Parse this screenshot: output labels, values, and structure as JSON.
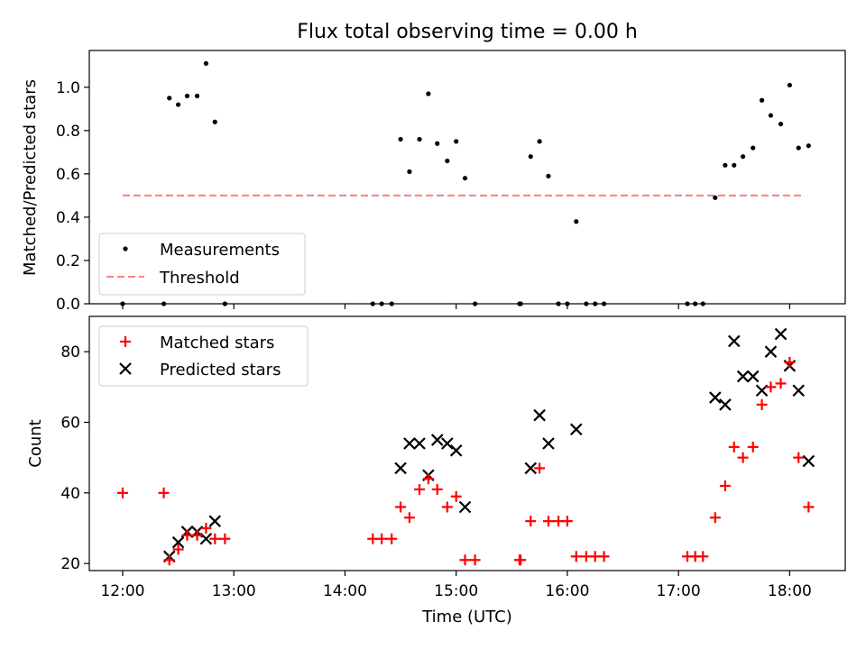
{
  "title": "Flux total observing time = 0.00 h",
  "chart_data": [
    {
      "type": "scatter",
      "ylabel": "Matched/Predicted stars",
      "xlim": [
        11.7,
        18.5
      ],
      "ylim": [
        0,
        1.17
      ],
      "yticks": [
        0.0,
        0.2,
        0.4,
        0.6,
        0.8,
        1.0
      ],
      "ytick_labels": [
        "0.0",
        "0.2",
        "0.4",
        "0.6",
        "0.8",
        "1.0"
      ],
      "legend_position": "lower-left",
      "colors": {
        "measurements": "#000000",
        "threshold": "#ff7f7f"
      },
      "series": [
        {
          "name": "Measurements",
          "kind": "points",
          "x": [
            12.0,
            12.37,
            12.42,
            12.5,
            12.58,
            12.67,
            12.75,
            12.83,
            12.92,
            14.25,
            14.33,
            14.42,
            14.5,
            14.58,
            14.67,
            14.75,
            14.83,
            14.92,
            15.0,
            15.08,
            15.17,
            15.57,
            15.58,
            15.67,
            15.75,
            15.83,
            15.92,
            16.0,
            16.08,
            16.17,
            16.25,
            16.33,
            17.08,
            17.15,
            17.22,
            17.33,
            17.42,
            17.5,
            17.58,
            17.67,
            17.75,
            17.83,
            17.92,
            18.0,
            18.08,
            18.17
          ],
          "y": [
            0.0,
            0.0,
            0.95,
            0.92,
            0.96,
            0.96,
            1.11,
            0.84,
            0.0,
            0.0,
            0.0,
            0.0,
            0.76,
            0.61,
            0.76,
            0.97,
            0.74,
            0.66,
            0.75,
            0.58,
            0.0,
            0.0,
            0.0,
            0.68,
            0.75,
            0.59,
            0.0,
            0.0,
            0.38,
            0.0,
            0.0,
            0.0,
            0.0,
            0.0,
            0.0,
            0.49,
            0.64,
            0.64,
            0.68,
            0.72,
            0.94,
            0.87,
            0.83,
            1.01,
            0.72,
            0.73
          ]
        },
        {
          "name": "Threshold",
          "kind": "dashed-line",
          "x": [
            12.0,
            18.12
          ],
          "y": [
            0.5,
            0.5
          ]
        }
      ]
    },
    {
      "type": "scatter",
      "xlabel": "Time (UTC)",
      "ylabel": "Count",
      "xlim": [
        11.7,
        18.5
      ],
      "ylim": [
        18,
        90
      ],
      "xticks": [
        12,
        13,
        14,
        15,
        16,
        17,
        18
      ],
      "xtick_labels": [
        "12:00",
        "13:00",
        "14:00",
        "15:00",
        "16:00",
        "17:00",
        "18:00"
      ],
      "yticks": [
        20,
        40,
        60,
        80
      ],
      "ytick_labels": [
        "20",
        "40",
        "60",
        "80"
      ],
      "legend_position": "upper-left",
      "colors": {
        "matched": "#ff0000",
        "predicted": "#000000"
      },
      "series": [
        {
          "name": "Matched stars",
          "marker": "plus",
          "x": [
            12.0,
            12.37,
            12.42,
            12.5,
            12.58,
            12.67,
            12.75,
            12.83,
            12.92,
            14.25,
            14.33,
            14.42,
            14.5,
            14.58,
            14.67,
            14.75,
            14.83,
            14.92,
            15.0,
            15.08,
            15.17,
            15.57,
            15.58,
            15.67,
            15.75,
            15.83,
            15.92,
            16.0,
            16.08,
            16.17,
            16.25,
            16.33,
            17.08,
            17.15,
            17.22,
            17.33,
            17.42,
            17.5,
            17.58,
            17.67,
            17.75,
            17.83,
            17.92,
            18.0,
            18.08,
            18.17
          ],
          "y": [
            40,
            40,
            21,
            24,
            28,
            28,
            30,
            27,
            27,
            27,
            27,
            27,
            36,
            33,
            41,
            44,
            41,
            36,
            39,
            21,
            21,
            21,
            21,
            32,
            47,
            32,
            32,
            32,
            22,
            22,
            22,
            22,
            22,
            22,
            22,
            33,
            42,
            53,
            50,
            53,
            65,
            70,
            71,
            77,
            50,
            36
          ]
        },
        {
          "name": "Predicted stars",
          "marker": "x",
          "x": [
            12.42,
            12.5,
            12.58,
            12.67,
            12.75,
            12.83,
            14.5,
            14.58,
            14.67,
            14.75,
            14.83,
            14.92,
            15.0,
            15.08,
            15.67,
            15.75,
            15.83,
            16.08,
            17.33,
            17.42,
            17.5,
            17.58,
            17.67,
            17.75,
            17.83,
            17.92,
            18.0,
            18.08,
            18.17
          ],
          "y": [
            22,
            26,
            29,
            29,
            27,
            32,
            47,
            54,
            54,
            45,
            55,
            54,
            52,
            36,
            47,
            62,
            54,
            58,
            67,
            65,
            83,
            73,
            73,
            69,
            80,
            85,
            76,
            69,
            49
          ]
        }
      ]
    }
  ]
}
